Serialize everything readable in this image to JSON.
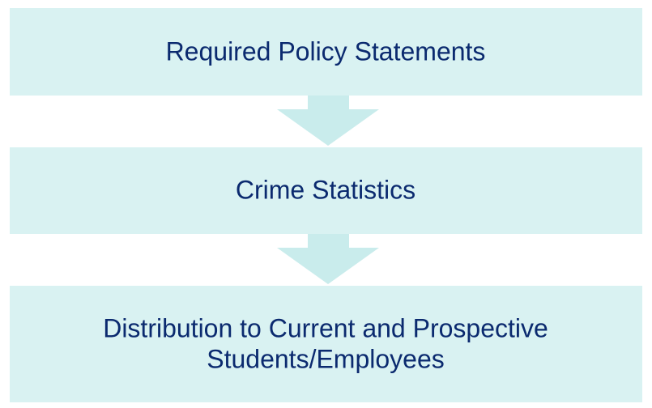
{
  "nodes": [
    {
      "label": [
        "Required Policy Statements"
      ]
    },
    {
      "label": [
        "Crime Statistics"
      ]
    },
    {
      "label": [
        "Distribution to Current and Prospective",
        "Students/Employees"
      ]
    }
  ]
}
